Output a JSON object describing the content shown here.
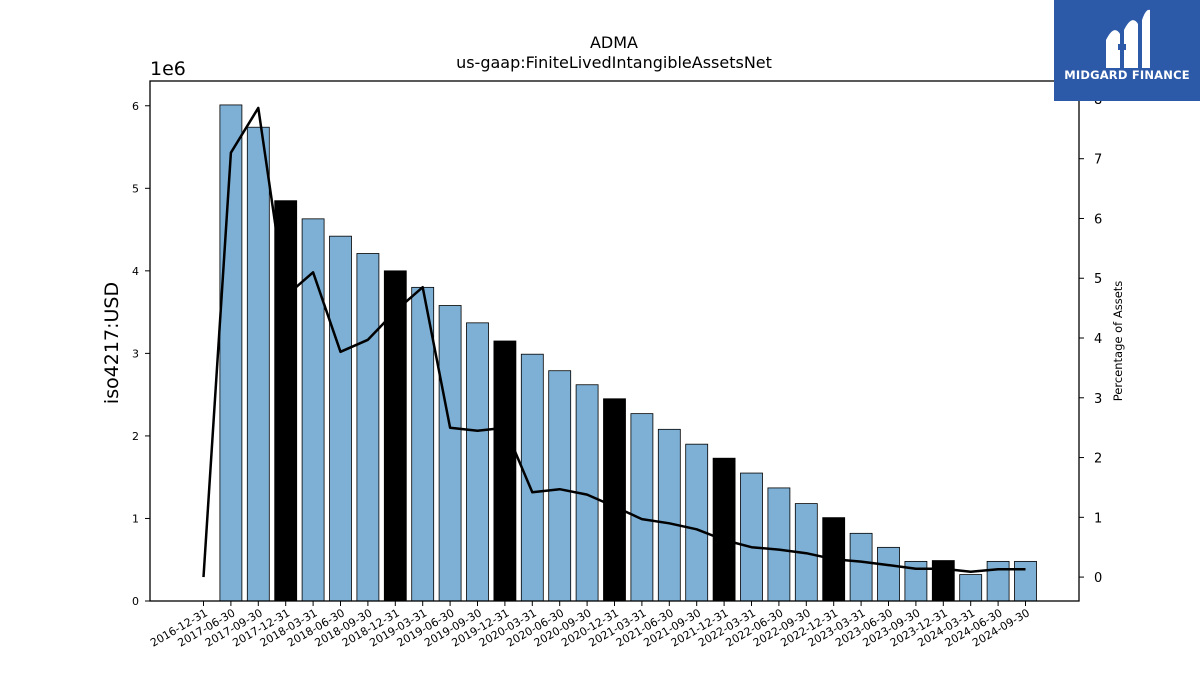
{
  "chart_data": {
    "type": "bar",
    "title": "ADMA",
    "subtitle": "us-gaap:FiniteLivedIntangibleAssetsNet",
    "ylabel": "iso4217:USD",
    "y2label": "Percentage of Assets",
    "y_offset_label": "1e6",
    "ylim": [
      0,
      6300000
    ],
    "y2lim": [
      -0.4,
      8.3
    ],
    "yticks": [
      0,
      1,
      2,
      3,
      4,
      5,
      6
    ],
    "y2ticks": [
      0,
      1,
      2,
      3,
      4,
      5,
      6,
      7,
      8
    ],
    "categories": [
      "2016-12-31",
      "2017-06-30",
      "2017-09-30",
      "2017-12-31",
      "2018-03-31",
      "2018-06-30",
      "2018-09-30",
      "2018-12-31",
      "2019-03-31",
      "2019-06-30",
      "2019-09-30",
      "2019-12-31",
      "2020-03-31",
      "2020-06-30",
      "2020-09-30",
      "2020-12-31",
      "2021-03-31",
      "2021-06-30",
      "2021-09-30",
      "2021-12-31",
      "2022-03-31",
      "2022-06-30",
      "2022-09-30",
      "2022-12-31",
      "2023-03-31",
      "2023-06-30",
      "2023-09-30",
      "2023-12-31",
      "2024-03-31",
      "2024-06-30",
      "2024-09-30"
    ],
    "series": [
      {
        "type": "bar",
        "values": [
          null,
          6010000,
          5740000,
          4850000,
          4630000,
          4420000,
          4210000,
          4000000,
          3800000,
          3580000,
          3370000,
          3150000,
          2990000,
          2790000,
          2620000,
          2450000,
          2270000,
          2080000,
          1900000,
          1730000,
          1550000,
          1370000,
          1180000,
          1010000,
          820000,
          650000,
          480000,
          490000,
          320000,
          480000,
          480000
        ],
        "highlight": [
          false,
          false,
          false,
          true,
          false,
          false,
          false,
          true,
          false,
          false,
          false,
          true,
          false,
          false,
          false,
          true,
          false,
          false,
          false,
          true,
          false,
          false,
          false,
          true,
          false,
          false,
          false,
          true,
          false,
          false,
          false
        ],
        "color": "#7eb0d5",
        "highlight_color": "#000000"
      },
      {
        "type": "line",
        "axis": "right",
        "values": [
          0,
          7.1,
          7.85,
          4.7,
          5.1,
          3.77,
          3.97,
          4.45,
          4.85,
          2.5,
          2.45,
          2.5,
          1.42,
          1.47,
          1.38,
          1.18,
          0.97,
          0.9,
          0.8,
          0.62,
          0.5,
          0.46,
          0.4,
          0.3,
          0.26,
          0.2,
          0.14,
          0.14,
          0.09,
          0.13,
          0.13
        ],
        "color": "#000000"
      }
    ],
    "grid": false
  },
  "logo": {
    "text": "MIDGARD FINANCE",
    "bg_color": "#2d5aa8"
  }
}
